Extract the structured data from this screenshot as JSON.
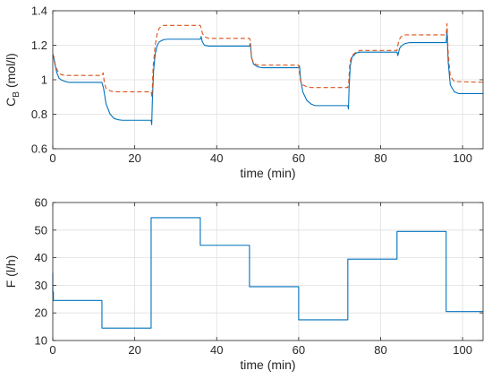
{
  "chart_data": [
    {
      "type": "line",
      "xlabel": "time (min)",
      "ylabel_main": "C",
      "ylabel_sub": "B",
      "ylabel_unit": "(mol/l)",
      "xlim": [
        0,
        105
      ],
      "ylim": [
        0.6,
        1.4
      ],
      "xticks": [
        0,
        20,
        40,
        60,
        80,
        100
      ],
      "yticks": [
        0.6,
        0.8,
        1,
        1.2,
        1.4
      ],
      "xtick_labels": [
        "0",
        "20",
        "40",
        "60",
        "80",
        "100"
      ],
      "ytick_labels": [
        "0.6",
        "0.8",
        "1",
        "1.2",
        "1.4"
      ],
      "grid": true,
      "series": [
        {
          "style": "solid",
          "color": "#0072BD",
          "x": [
            0,
            0.3,
            0.6,
            1,
            1.5,
            2,
            3,
            4,
            5,
            12,
            12.4,
            13,
            14,
            15,
            16,
            17,
            24,
            24.15,
            24.3,
            24.6,
            25,
            25.5,
            26,
            27,
            28,
            36,
            36.2,
            36.5,
            37,
            38,
            39,
            48,
            48.2,
            48.5,
            49,
            50,
            51,
            60,
            60.2,
            60.5,
            61,
            62,
            63,
            64,
            72,
            72.15,
            72.3,
            72.6,
            73,
            74,
            75,
            84,
            84.2,
            84.6,
            85,
            86,
            87,
            96,
            96.2,
            96.5,
            97,
            98,
            99,
            105
          ],
          "y": [
            1.14,
            1.12,
            1.08,
            1.04,
            1.01,
            1.0,
            0.99,
            0.985,
            0.985,
            0.985,
            0.95,
            0.86,
            0.8,
            0.775,
            0.768,
            0.765,
            0.765,
            0.74,
            0.88,
            1.05,
            1.15,
            1.2,
            1.22,
            1.232,
            1.235,
            1.235,
            1.25,
            1.22,
            1.2,
            1.195,
            1.195,
            1.195,
            1.21,
            1.13,
            1.09,
            1.075,
            1.07,
            1.07,
            1.08,
            1.0,
            0.93,
            0.88,
            0.86,
            0.85,
            0.85,
            0.83,
            0.95,
            1.08,
            1.13,
            1.155,
            1.16,
            1.16,
            1.14,
            1.18,
            1.195,
            1.21,
            1.215,
            1.215,
            1.28,
            1.1,
            0.97,
            0.93,
            0.92,
            0.92
          ]
        },
        {
          "style": "dashed",
          "color": "#D95319",
          "x": [
            0,
            0.3,
            0.6,
            1,
            1.5,
            2,
            3,
            4,
            12,
            12.3,
            12.6,
            13,
            14,
            15,
            16,
            24,
            24.2,
            24.5,
            25,
            25.5,
            26,
            27,
            28,
            36,
            36.2,
            36.5,
            37,
            38,
            48,
            48.2,
            48.5,
            49,
            50,
            60,
            60.2,
            60.5,
            61,
            62,
            63,
            72,
            72.2,
            72.5,
            73,
            74,
            75,
            84,
            84.2,
            84.5,
            85,
            86,
            96,
            96.2,
            96.5,
            97,
            98,
            105
          ],
          "y": [
            1.15,
            1.13,
            1.09,
            1.06,
            1.04,
            1.03,
            1.025,
            1.025,
            1.025,
            1.04,
            0.98,
            0.95,
            0.935,
            0.93,
            0.93,
            0.93,
            0.9,
            1.08,
            1.2,
            1.27,
            1.3,
            1.315,
            1.315,
            1.315,
            1.3,
            1.27,
            1.25,
            1.24,
            1.24,
            1.23,
            1.13,
            1.095,
            1.085,
            1.085,
            1.04,
            0.99,
            0.97,
            0.96,
            0.955,
            0.955,
            0.98,
            1.1,
            1.14,
            1.16,
            1.17,
            1.17,
            1.2,
            1.23,
            1.25,
            1.26,
            1.26,
            1.325,
            1.15,
            1.02,
            0.99,
            0.985
          ]
        }
      ]
    },
    {
      "type": "line",
      "xlabel": "time (min)",
      "ylabel": "F (l/h)",
      "xlim": [
        0,
        105
      ],
      "ylim": [
        10,
        60
      ],
      "xticks": [
        0,
        20,
        40,
        60,
        80,
        100
      ],
      "yticks": [
        10,
        20,
        30,
        40,
        50,
        60
      ],
      "xtick_labels": [
        "0",
        "20",
        "40",
        "60",
        "80",
        "100"
      ],
      "ytick_labels": [
        "10",
        "20",
        "30",
        "40",
        "50",
        "60"
      ],
      "grid": true,
      "series": [
        {
          "style": "step",
          "color": "#0072BD",
          "x": [
            0,
            0,
            0.15,
            0.15,
            12,
            12,
            24,
            24,
            36,
            36,
            48,
            48,
            60,
            60,
            72,
            72,
            84,
            84,
            96,
            96,
            105
          ],
          "y": [
            34.5,
            27.5,
            27.5,
            24.5,
            24.5,
            14.5,
            14.5,
            54.5,
            54.5,
            44.5,
            44.5,
            29.5,
            29.5,
            17.5,
            17.5,
            39.5,
            39.5,
            49.5,
            49.5,
            20.5,
            20.5
          ]
        }
      ]
    }
  ]
}
